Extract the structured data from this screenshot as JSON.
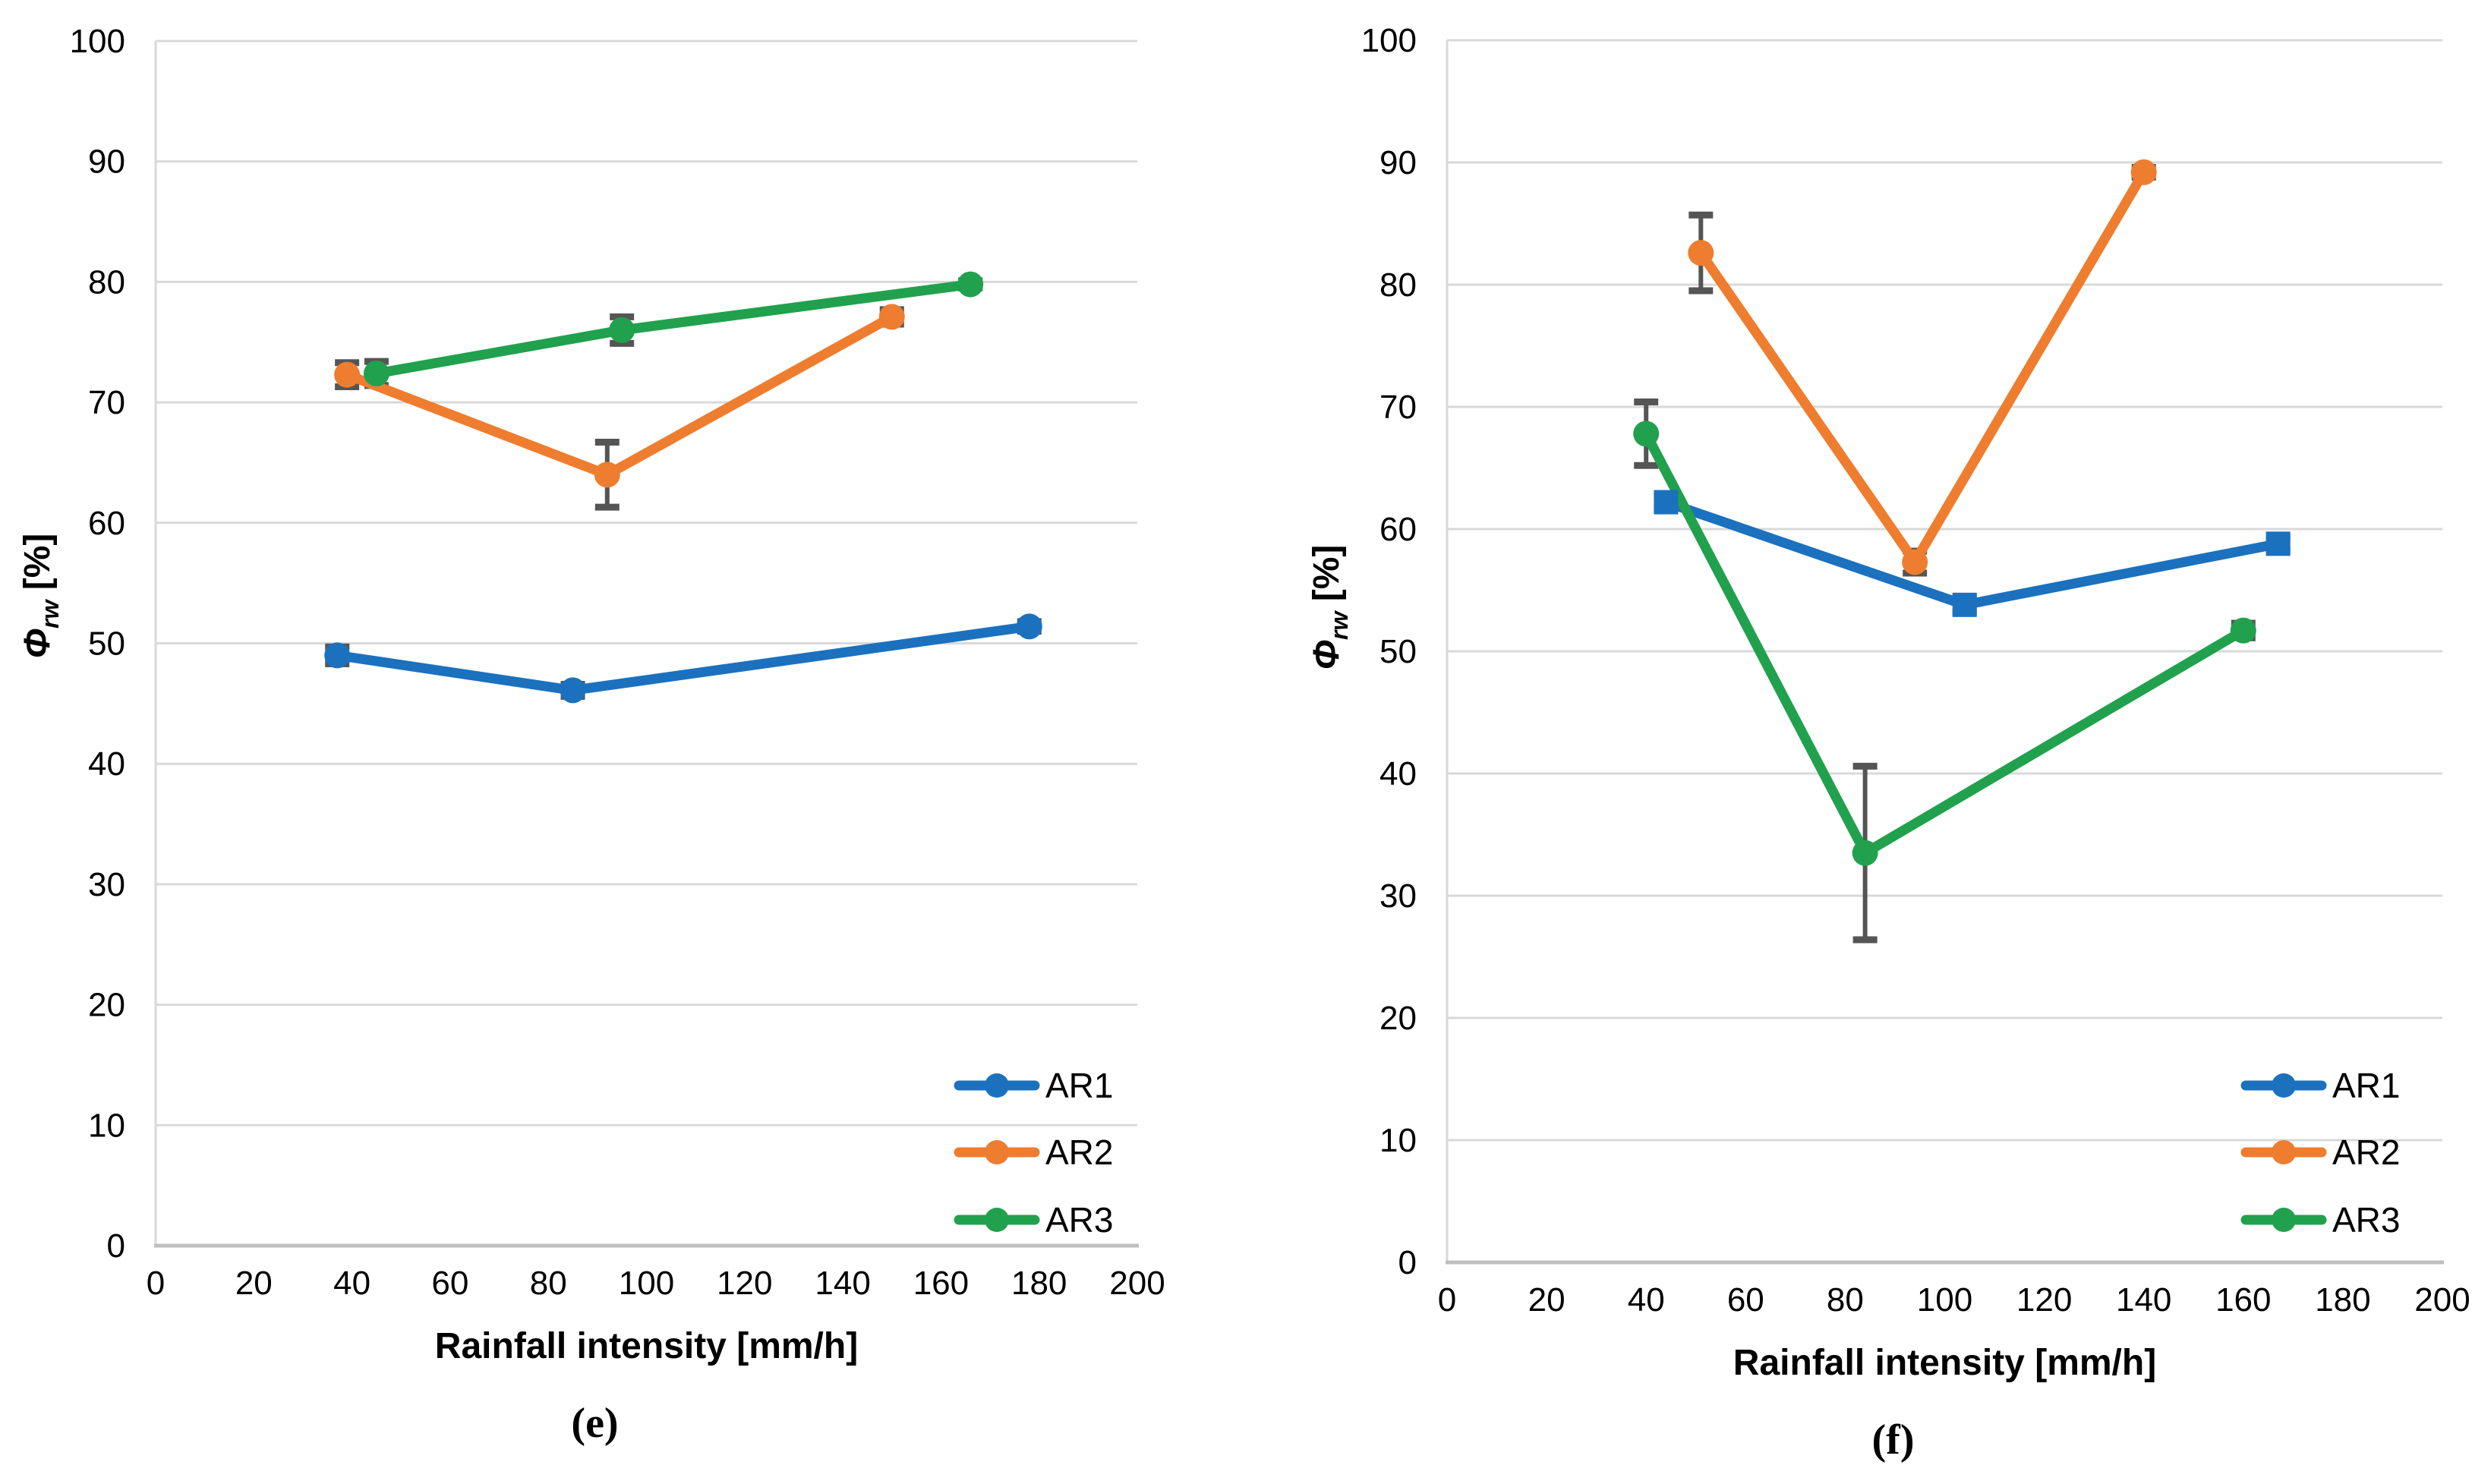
{
  "figure": {
    "background": "#ffffff",
    "panel_labels": [
      "(e)",
      "(f)"
    ]
  },
  "colors": {
    "ar1_blue": "#1B71BE",
    "ar2_orange": "#EE7D2F",
    "ar3_green": "#21A14D",
    "error_bar": "#555555",
    "gridline": "#D9D9D9",
    "axis_line": "#BFBFBF",
    "text": "#000000"
  },
  "chart_data": [
    {
      "type": "line",
      "panel_label": "(e)",
      "title": "",
      "xlabel": "Rainfall intensity [mm/h]",
      "ylabel": {
        "symbol": "Φ",
        "subscript": "rw",
        "unit": "[%]"
      },
      "xlim": [
        0,
        200
      ],
      "ylim": [
        0,
        100
      ],
      "x_ticks": [
        0,
        20,
        40,
        60,
        80,
        100,
        120,
        140,
        160,
        180,
        200
      ],
      "y_ticks": [
        0,
        10,
        20,
        30,
        40,
        50,
        60,
        70,
        80,
        90,
        100
      ],
      "grid": "horizontal",
      "legend_position": "lower right",
      "legend_entries": [
        "AR1",
        "AR2",
        "AR3"
      ],
      "series": [
        {
          "name": "AR1",
          "color": "#1B71BE",
          "marker": "circle",
          "points": [
            {
              "x": 37,
              "y": 49.0,
              "err": 0.7
            },
            {
              "x": 85,
              "y": 46.1,
              "err": 0.5
            },
            {
              "x": 178,
              "y": 51.4,
              "err": 0.4
            }
          ]
        },
        {
          "name": "AR2",
          "color": "#EE7D2F",
          "marker": "circle",
          "points": [
            {
              "x": 39,
              "y": 72.3,
              "err": 1.0
            },
            {
              "x": 92,
              "y": 64.0,
              "err": 2.7
            },
            {
              "x": 150,
              "y": 77.1,
              "err": 0.6
            }
          ]
        },
        {
          "name": "AR3",
          "color": "#21A14D",
          "marker": "circle",
          "points": [
            {
              "x": 45,
              "y": 72.4,
              "err": 1.0
            },
            {
              "x": 95,
              "y": 76.0,
              "err": 1.1
            },
            {
              "x": 166,
              "y": 79.8,
              "err": 0.3
            }
          ]
        }
      ]
    },
    {
      "type": "line",
      "panel_label": "(f)",
      "title": "",
      "xlabel": "Rainfall intensity [mm/h]",
      "ylabel": {
        "symbol": "Φ",
        "subscript": "rw",
        "unit": "[%]"
      },
      "xlim": [
        0,
        200
      ],
      "ylim": [
        0,
        100
      ],
      "x_ticks": [
        0,
        20,
        40,
        60,
        80,
        100,
        120,
        140,
        160,
        180,
        200
      ],
      "y_ticks": [
        0,
        10,
        20,
        30,
        40,
        50,
        60,
        70,
        80,
        90,
        100
      ],
      "grid": "horizontal",
      "legend_position": "lower right",
      "legend_entries": [
        "AR1",
        "AR2",
        "AR3"
      ],
      "series": [
        {
          "name": "AR1",
          "color": "#1B71BE",
          "marker": "square",
          "points": [
            {
              "x": 44,
              "y": 62.2,
              "err": 0.5
            },
            {
              "x": 104,
              "y": 53.8,
              "err": 0.6
            },
            {
              "x": 167,
              "y": 58.8,
              "err": 0.5
            }
          ]
        },
        {
          "name": "AR2",
          "color": "#EE7D2F",
          "marker": "circle",
          "points": [
            {
              "x": 51,
              "y": 82.6,
              "err": 3.1
            },
            {
              "x": 94,
              "y": 57.3,
              "err": 0.9
            },
            {
              "x": 140,
              "y": 89.2,
              "err": 0.4
            }
          ]
        },
        {
          "name": "AR3",
          "color": "#21A14D",
          "marker": "circle",
          "points": [
            {
              "x": 40,
              "y": 67.8,
              "err": 2.6
            },
            {
              "x": 84,
              "y": 33.5,
              "err": 7.1
            },
            {
              "x": 160,
              "y": 51.7,
              "err": 0.6
            }
          ]
        }
      ]
    }
  ]
}
